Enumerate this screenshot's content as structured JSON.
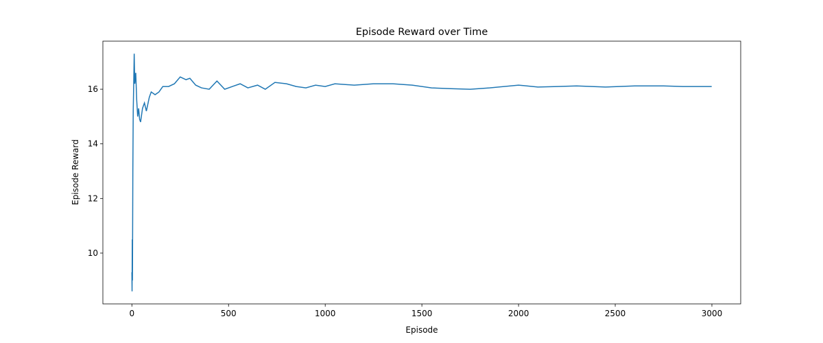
{
  "chart_data": {
    "type": "line",
    "title": "Episode Reward over Time",
    "xlabel": "Episode",
    "ylabel": "Episode Reward",
    "x": [
      0,
      1,
      2,
      3,
      5,
      7,
      9,
      12,
      15,
      20,
      25,
      30,
      35,
      40,
      45,
      55,
      65,
      75,
      90,
      100,
      120,
      140,
      160,
      190,
      220,
      250,
      280,
      300,
      330,
      360,
      400,
      440,
      480,
      520,
      560,
      600,
      650,
      690,
      740,
      800,
      850,
      900,
      950,
      1000,
      1050,
      1150,
      1250,
      1350,
      1450,
      1550,
      1650,
      1750,
      1850,
      2000,
      2100,
      2200,
      2300,
      2450,
      2600,
      2750,
      2850,
      2999
    ],
    "values": [
      9.3,
      8.6,
      10.5,
      9.0,
      13.0,
      15.2,
      16.0,
      17.3,
      16.2,
      16.6,
      15.6,
      15.0,
      15.3,
      14.9,
      14.8,
      15.3,
      15.5,
      15.2,
      15.7,
      15.9,
      15.8,
      15.9,
      16.1,
      16.1,
      16.2,
      16.45,
      16.35,
      16.4,
      16.15,
      16.05,
      16.0,
      16.3,
      16.0,
      16.1,
      16.2,
      16.05,
      16.15,
      16.0,
      16.25,
      16.2,
      16.1,
      16.05,
      16.15,
      16.1,
      16.2,
      16.15,
      16.2,
      16.2,
      16.15,
      16.05,
      16.02,
      16.0,
      16.05,
      16.15,
      16.08,
      16.1,
      16.12,
      16.08,
      16.12,
      16.12,
      16.1,
      16.1
    ],
    "color": "#1f77b4",
    "xlim": [
      -150,
      3149
    ],
    "ylim": [
      8.14,
      17.76
    ],
    "xticks": [
      0,
      500,
      1000,
      1500,
      2000,
      2500,
      3000
    ],
    "yticks": [
      10,
      12,
      14,
      16
    ]
  }
}
